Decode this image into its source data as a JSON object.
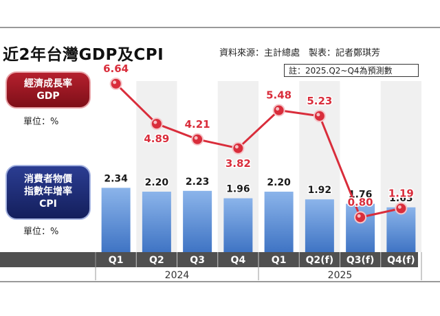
{
  "title": "近2年台灣GDP及CPI",
  "source": "資料來源：主計總處　製表：記者鄭琪芳",
  "note": "註：2025.Q2~Q4為預測數",
  "gdp_badge": {
    "line1": "經濟成長率",
    "line2": "GDP"
  },
  "cpi_badge": {
    "line1": "消費者物價",
    "line2": "指數年增率",
    "line3": "CPI"
  },
  "gdp_unit": "單位：%",
  "cpi_unit": "單位：%",
  "colors": {
    "gdp": "#d92d3b",
    "cpi_bar": "#5b8fd6",
    "axis_band": "#505050"
  },
  "chart_data": {
    "type": "bar+line",
    "categories": [
      "Q1",
      "Q2",
      "Q3",
      "Q4",
      "Q1",
      "Q2(f)",
      "Q3(f)",
      "Q4(f)"
    ],
    "years": [
      {
        "label": "2024",
        "span": [
          0,
          3
        ]
      },
      {
        "label": "2025",
        "span": [
          4,
          7
        ]
      }
    ],
    "series": [
      {
        "name": "GDP",
        "type": "line",
        "values": [
          6.64,
          4.89,
          4.21,
          3.82,
          5.48,
          5.23,
          0.8,
          1.19
        ],
        "labels": [
          "6.64",
          "4.89",
          "4.21",
          "3.82",
          "5.48",
          "5.23",
          "0.80",
          "1.19"
        ]
      },
      {
        "name": "CPI",
        "type": "bar",
        "values": [
          2.34,
          2.2,
          2.23,
          1.96,
          2.2,
          1.92,
          1.76,
          1.63
        ],
        "labels": [
          "2.34",
          "2.20",
          "2.23",
          "1.96",
          "2.20",
          "1.92",
          "1.76",
          "1.63"
        ]
      }
    ]
  }
}
